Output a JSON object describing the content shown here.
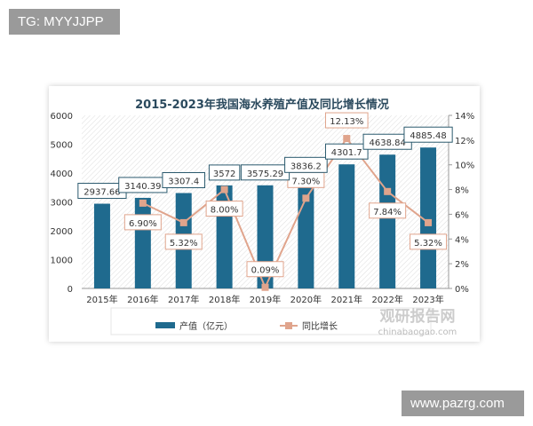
{
  "watermarks": {
    "top_left": "TG: MYYJJPP",
    "bottom_right": "www.pazrg.com",
    "source_logo": "观研报告网",
    "source_url": "chinabaogao.com"
  },
  "chart_data": {
    "type": "bar+line",
    "title": "2015-2023年我国海水养殖产值及同比增长情况",
    "categories": [
      "2015年",
      "2016年",
      "2017年",
      "2018年",
      "2019年",
      "2020年",
      "2021年",
      "2022年",
      "2023年"
    ],
    "series": [
      {
        "name": "产值（亿元）",
        "type": "bar",
        "axis": "left",
        "color": "#1f6a8e",
        "values": [
          2937.66,
          3140.39,
          3307.4,
          3572,
          3575.29,
          3836.2,
          4301.7,
          4638.84,
          4885.48
        ],
        "labels": [
          "2937.66",
          "3140.39",
          "3307.4",
          "3572",
          "3575.29",
          "3836.2",
          "4301.7",
          "4638.84",
          "4885.48"
        ]
      },
      {
        "name": "同比增长",
        "type": "line",
        "axis": "right",
        "color": "#e0a48c",
        "values": [
          null,
          6.9,
          5.32,
          8.0,
          0.09,
          7.3,
          12.13,
          7.84,
          5.32
        ],
        "labels": [
          null,
          "6.90%",
          "5.32%",
          "8.00%",
          "0.09%",
          "7.30%",
          "12.13%",
          "7.84%",
          "5.32%"
        ]
      }
    ],
    "left_axis": {
      "range": [
        0,
        6000
      ],
      "ticks": [
        "0",
        "1000",
        "2000",
        "3000",
        "4000",
        "5000",
        "6000"
      ]
    },
    "right_axis": {
      "range": [
        0,
        14
      ],
      "ticks": [
        "0%",
        "2%",
        "4%",
        "6%",
        "8%",
        "10%",
        "12%",
        "14%"
      ]
    },
    "legend": "bottom",
    "grid": false
  }
}
